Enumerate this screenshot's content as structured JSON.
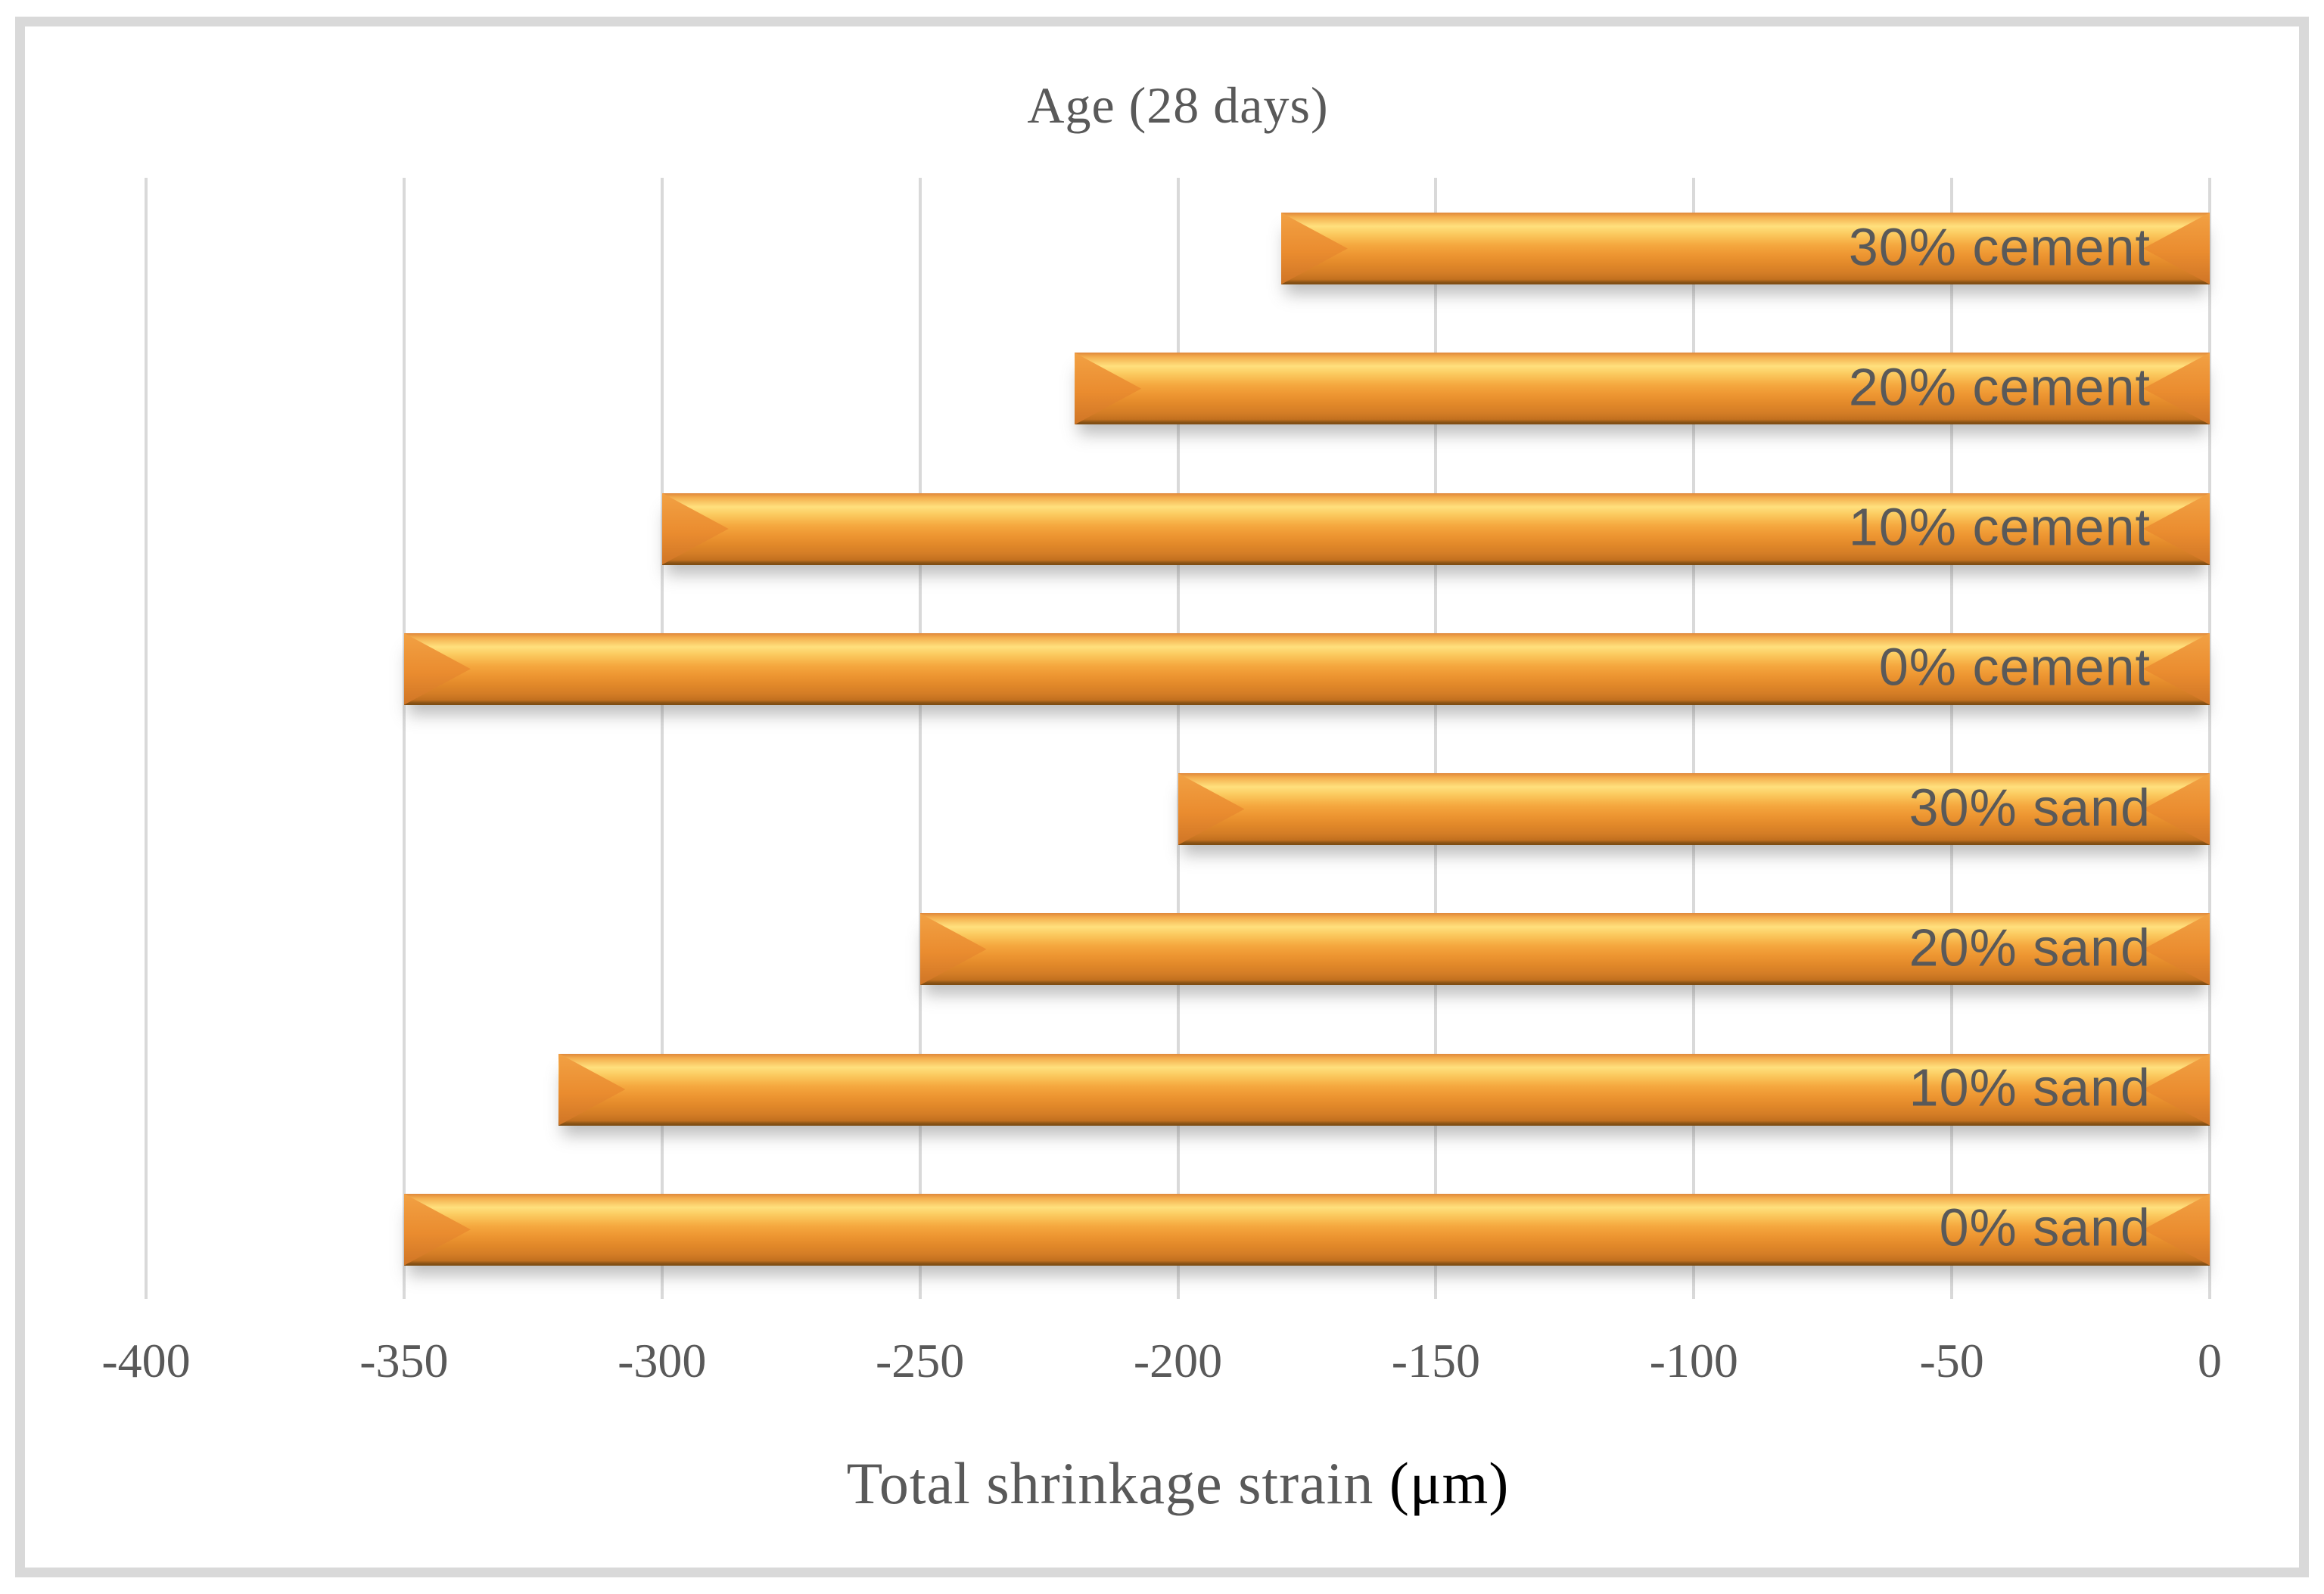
{
  "frame": {
    "border_color": "#d9d9d9"
  },
  "chart_data": {
    "type": "bar",
    "orientation": "horizontal",
    "title": "Age (28 days)",
    "xlabel": "Total shrinkage strain (μm)",
    "xlabel_main": "Total shrinkage strain ",
    "xlabel_unit": "(μm)",
    "ylabel": "",
    "categories": [
      "30% cement",
      "20% cement",
      "10% cement",
      "0% cement",
      "30% sand",
      "20% sand",
      "10% sand",
      "0% sand"
    ],
    "values": [
      -180,
      -220,
      -300,
      -350,
      -200,
      -250,
      -320,
      -350
    ],
    "xlim": [
      -400,
      0
    ],
    "xticks": [
      -400,
      -350,
      -300,
      -250,
      -200,
      -150,
      -100,
      -50,
      0
    ],
    "grid": true,
    "legend": "none",
    "bar_style": "3d-bevel",
    "bar_color": "#f09a35",
    "bar_highlight_color": "#ffe07d",
    "bar_shadow_color": "#7a4a12",
    "gridline_color": "#d9d9d9",
    "text_color": "#595959",
    "unit_text_color": "#000000"
  }
}
